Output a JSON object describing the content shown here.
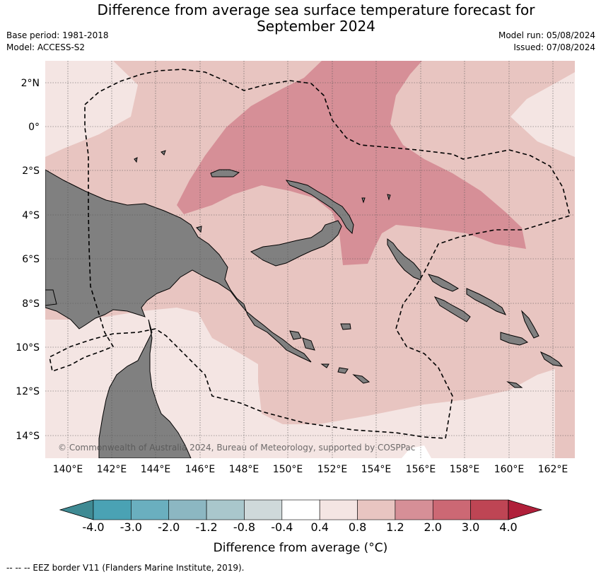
{
  "title_line1": "Difference from average sea surface temperature forecast for",
  "title_line2": "September 2024",
  "base_period": "Base period: 1981-2018",
  "model": "Model: ACCESS-S2",
  "model_run": "Model run: 05/08/2024",
  "issued": "Issued: 07/08/2024",
  "lat_labels": [
    "2°N",
    "0°",
    "2°S",
    "4°S",
    "6°S",
    "8°S",
    "10°S",
    "12°S",
    "14°S"
  ],
  "lon_labels": [
    "140°E",
    "142°E",
    "144°E",
    "146°E",
    "148°E",
    "150°E",
    "152°E",
    "154°E",
    "156°E",
    "158°E",
    "160°E",
    "162°E"
  ],
  "copyright": "© Commonwealth of Australia 2024, Bureau of Meteorology, supported by COSPPac",
  "colorbar": {
    "ticks": [
      "-4.0",
      "-3.0",
      "-2.0",
      "-1.2",
      "-0.8",
      "-0.4",
      "0.4",
      "0.8",
      "1.2",
      "2.0",
      "3.0",
      "4.0"
    ],
    "colors": [
      "#3f8a93",
      "#4aa2b4",
      "#6aafbf",
      "#8cb7c2",
      "#a9c7cc",
      "#cfd9da",
      "#ffffff",
      "#f4e5e3",
      "#e8c5c1",
      "#d68f97",
      "#cc6874",
      "#be4554",
      "#b01f3a"
    ],
    "label": "Difference from average (°C)"
  },
  "legend_footnote": "--  --  -- EEZ border V11 (Flanders Marine Institute, 2019).",
  "colors": {
    "land": "#808080",
    "light_anomaly": "#f4e5e3",
    "medium_anomaly": "#e8c5c1",
    "strong_anomaly": "#d68f97"
  }
}
